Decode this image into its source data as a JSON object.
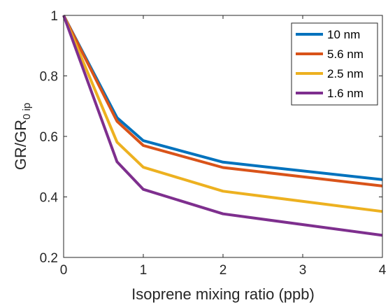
{
  "chart_data": {
    "type": "line",
    "title": "",
    "xlabel": "Isoprene mixing ratio (ppb)",
    "ylabel_main": "GR/GR",
    "ylabel_sub": "0 ip",
    "xlim": [
      0,
      4
    ],
    "ylim": [
      0.2,
      1
    ],
    "xticks": [
      0,
      1,
      2,
      3,
      4
    ],
    "xtick_labels": [
      "0",
      "1",
      "2",
      "3",
      "4"
    ],
    "yticks": [
      0.2,
      0.4,
      0.6,
      0.8,
      1
    ],
    "ytick_labels": [
      "0.2",
      "0.4",
      "0.6",
      "0.8",
      "1"
    ],
    "grid": false,
    "legend_position": "top-right",
    "x": [
      0,
      0.67,
      1,
      2,
      4
    ],
    "series": [
      {
        "name": "10 nm",
        "color": "#0072BD",
        "values": [
          1,
          0.662,
          0.586,
          0.515,
          0.457
        ]
      },
      {
        "name": "5.6 nm",
        "color": "#D95319",
        "values": [
          1,
          0.65,
          0.57,
          0.497,
          0.436
        ]
      },
      {
        "name": "2.5 nm",
        "color": "#EDB120",
        "values": [
          1,
          0.581,
          0.498,
          0.419,
          0.352
        ]
      },
      {
        "name": "1.6 nm",
        "color": "#7E2F8E",
        "values": [
          1,
          0.516,
          0.425,
          0.344,
          0.273
        ]
      }
    ]
  }
}
